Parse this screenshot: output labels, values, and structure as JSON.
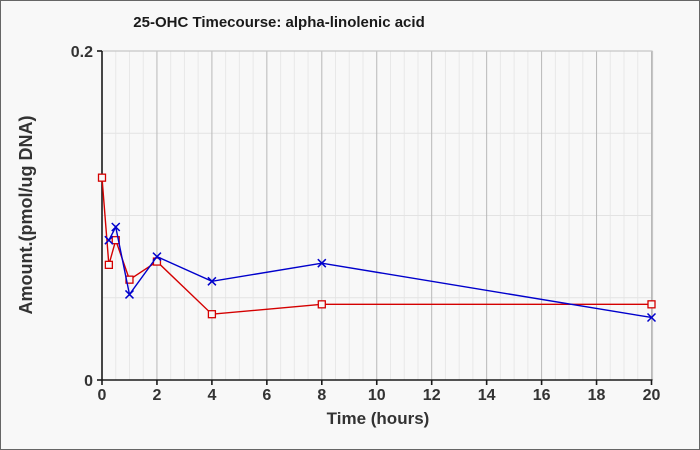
{
  "window": {
    "background": "#f8f8f8",
    "border_color": "#666666"
  },
  "chart_data": {
    "type": "line",
    "title": "25-OHC Timecourse: alpha-linolenic acid",
    "xlabel": "Time (hours)",
    "ylabel": "Amount.(pmol/ug DNA)",
    "xlim": [
      0,
      20
    ],
    "ylim": [
      0,
      0.2
    ],
    "x_major_ticks": [
      0,
      2,
      4,
      6,
      8,
      10,
      12,
      14,
      16,
      18,
      20
    ],
    "x_major_tick_labels": [
      "0",
      "2",
      "4",
      "6",
      "8",
      "10",
      "12",
      "14",
      "16",
      "18",
      "20"
    ],
    "x_minor_step": 0.5,
    "y_ticks": [
      0,
      0.2
    ],
    "y_tick_labels": [
      "0",
      "0.2"
    ],
    "y_gridlines": [
      0.05,
      0.1,
      0.15
    ],
    "grid": "on",
    "legend": "none",
    "series": [
      {
        "name": "red-squares",
        "marker": "square",
        "color": "#d40000",
        "x": [
          0,
          0.25,
          0.5,
          1,
          2,
          4,
          8,
          20
        ],
        "y": [
          0.123,
          0.07,
          0.085,
          0.061,
          0.072,
          0.04,
          0.046,
          0.046
        ]
      },
      {
        "name": "blue-x",
        "marker": "x",
        "color": "#0000cc",
        "x": [
          0.25,
          0.5,
          1,
          2,
          4,
          8,
          20
        ],
        "y": [
          0.085,
          0.093,
          0.052,
          0.075,
          0.06,
          0.071,
          0.038
        ]
      }
    ],
    "colors": {
      "axis": "#1a1a1a",
      "tick_text": "#333333",
      "grid_major": "#b8b8b8",
      "grid_minor": "#e8e8e8",
      "grid_horizontal": "#e3e3e3",
      "frame": "#c6c6c6",
      "marker_fill": "#f8f8f8"
    }
  }
}
